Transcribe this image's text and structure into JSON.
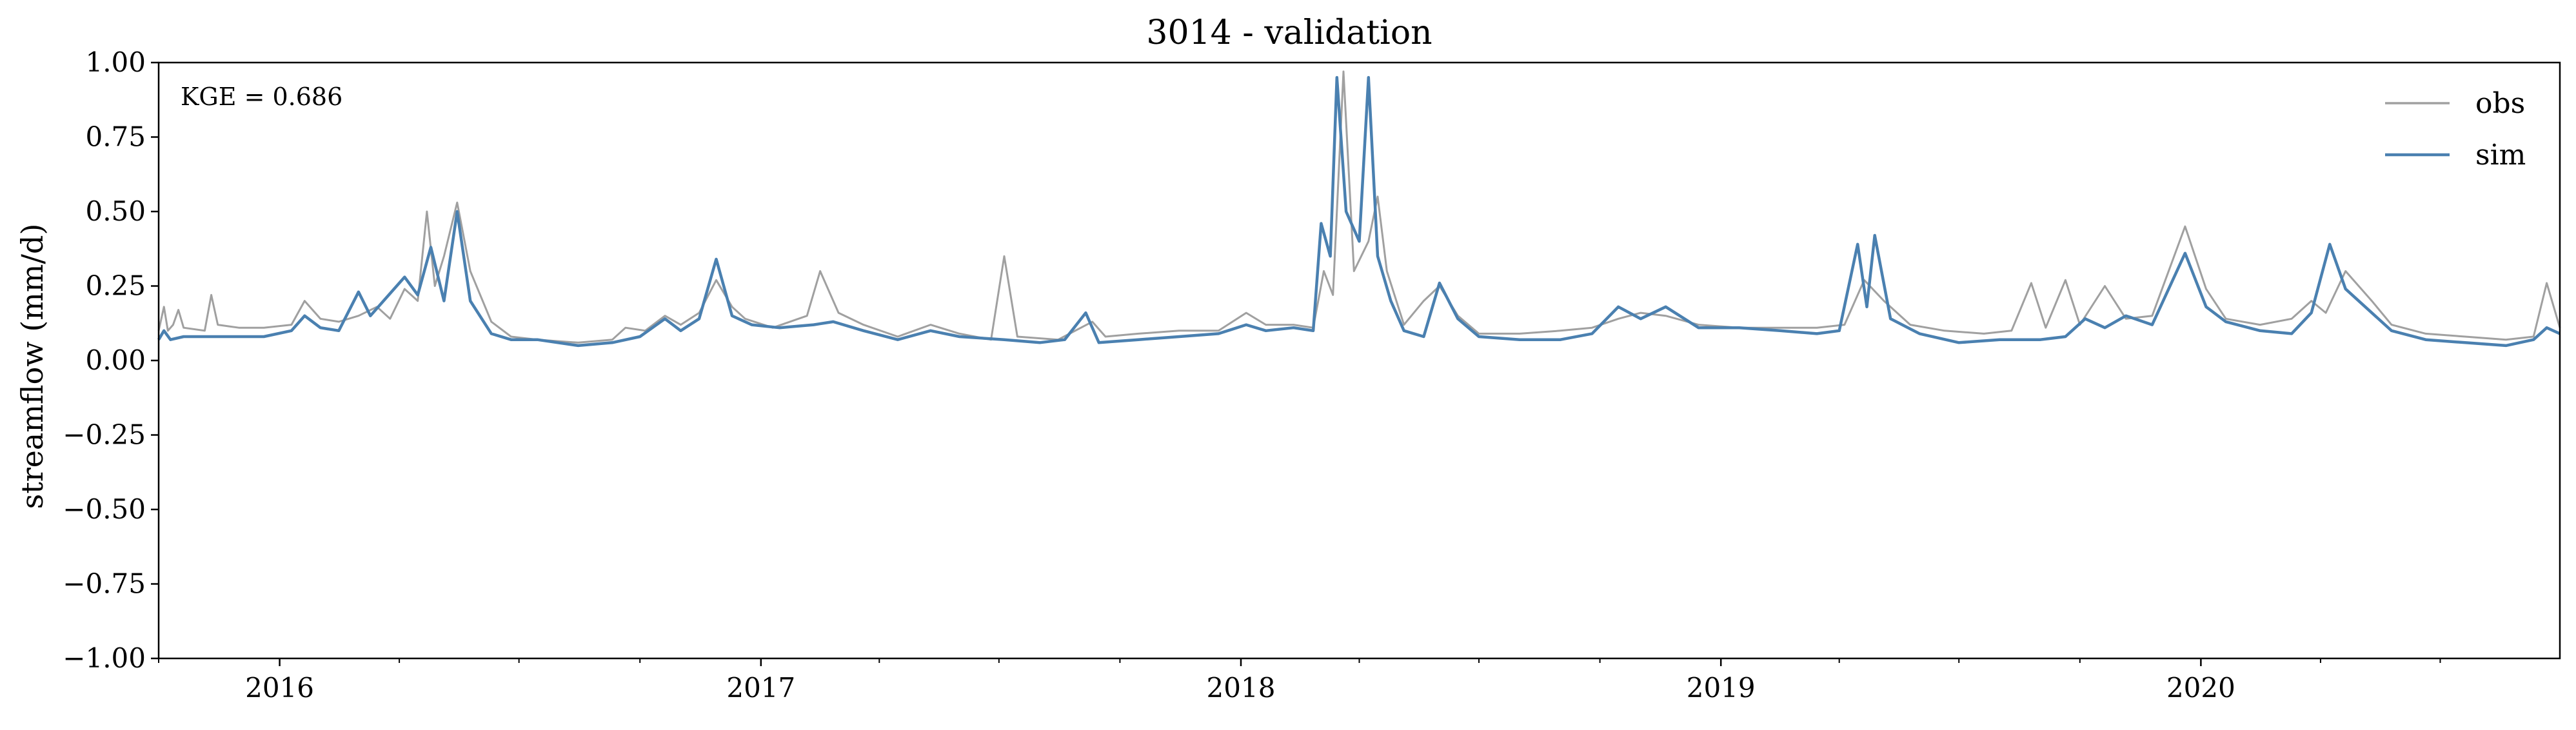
{
  "chart_data": {
    "type": "line",
    "title": "3014 - validation",
    "ylabel": "streamflow (mm/d)",
    "xlabel": "",
    "annotation": "KGE = 0.686",
    "ylim": [
      -1.0,
      1.0
    ],
    "xlim": [
      "2015-10-01",
      "2020-09-30"
    ],
    "x_tick_labels": [
      "2016",
      "2017",
      "2018",
      "2019",
      "2020"
    ],
    "y_tick_labels": [
      "1.00",
      "0.75",
      "0.50",
      "0.25",
      "0.00",
      "−0.25",
      "−0.50",
      "−0.75",
      "−1.00"
    ],
    "y_ticks": [
      1.0,
      0.75,
      0.5,
      0.25,
      0.0,
      -0.25,
      -0.5,
      -0.75,
      -1.0
    ],
    "legend": {
      "position": "top-right",
      "entries": [
        "obs",
        "sim"
      ]
    },
    "grid": false,
    "colors": {
      "obs": "#a0a0a0",
      "sim": "#4a80b0"
    },
    "series": [
      {
        "name": "obs",
        "points": [
          [
            "2015-10-01",
            0.1
          ],
          [
            "2015-10-05",
            0.18
          ],
          [
            "2015-10-08",
            0.1
          ],
          [
            "2015-10-12",
            0.12
          ],
          [
            "2015-10-16",
            0.17
          ],
          [
            "2015-10-20",
            0.11
          ],
          [
            "2015-11-05",
            0.1
          ],
          [
            "2015-11-10",
            0.22
          ],
          [
            "2015-11-15",
            0.12
          ],
          [
            "2015-12-01",
            0.11
          ],
          [
            "2015-12-20",
            0.11
          ],
          [
            "2016-01-10",
            0.12
          ],
          [
            "2016-01-20",
            0.2
          ],
          [
            "2016-02-01",
            0.14
          ],
          [
            "2016-02-15",
            0.13
          ],
          [
            "2016-03-01",
            0.15
          ],
          [
            "2016-03-15",
            0.18
          ],
          [
            "2016-03-25",
            0.14
          ],
          [
            "2016-04-05",
            0.24
          ],
          [
            "2016-04-15",
            0.2
          ],
          [
            "2016-04-22",
            0.5
          ],
          [
            "2016-04-28",
            0.25
          ],
          [
            "2016-05-05",
            0.35
          ],
          [
            "2016-05-15",
            0.53
          ],
          [
            "2016-05-25",
            0.3
          ],
          [
            "2016-06-10",
            0.13
          ],
          [
            "2016-06-25",
            0.08
          ],
          [
            "2016-07-15",
            0.07
          ],
          [
            "2016-08-15",
            0.06
          ],
          [
            "2016-09-10",
            0.07
          ],
          [
            "2016-09-20",
            0.11
          ],
          [
            "2016-10-05",
            0.1
          ],
          [
            "2016-10-20",
            0.15
          ],
          [
            "2016-11-01",
            0.12
          ],
          [
            "2016-11-15",
            0.16
          ],
          [
            "2016-11-28",
            0.27
          ],
          [
            "2016-12-10",
            0.18
          ],
          [
            "2016-12-20",
            0.14
          ],
          [
            "2017-01-10",
            0.11
          ],
          [
            "2017-02-05",
            0.15
          ],
          [
            "2017-02-15",
            0.3
          ],
          [
            "2017-03-01",
            0.16
          ],
          [
            "2017-03-20",
            0.12
          ],
          [
            "2017-04-15",
            0.08
          ],
          [
            "2017-05-10",
            0.12
          ],
          [
            "2017-06-01",
            0.09
          ],
          [
            "2017-06-25",
            0.07
          ],
          [
            "2017-07-05",
            0.35
          ],
          [
            "2017-07-15",
            0.08
          ],
          [
            "2017-08-15",
            0.07
          ],
          [
            "2017-09-10",
            0.13
          ],
          [
            "2017-09-20",
            0.08
          ],
          [
            "2017-10-15",
            0.09
          ],
          [
            "2017-11-15",
            0.1
          ],
          [
            "2017-12-15",
            0.1
          ],
          [
            "2018-01-05",
            0.16
          ],
          [
            "2018-01-20",
            0.12
          ],
          [
            "2018-02-10",
            0.12
          ],
          [
            "2018-02-25",
            0.11
          ],
          [
            "2018-03-05",
            0.3
          ],
          [
            "2018-03-12",
            0.22
          ],
          [
            "2018-03-20",
            0.97
          ],
          [
            "2018-03-28",
            0.3
          ],
          [
            "2018-04-08",
            0.4
          ],
          [
            "2018-04-15",
            0.55
          ],
          [
            "2018-04-22",
            0.3
          ],
          [
            "2018-05-05",
            0.12
          ],
          [
            "2018-05-20",
            0.2
          ],
          [
            "2018-06-01",
            0.25
          ],
          [
            "2018-06-15",
            0.15
          ],
          [
            "2018-07-01",
            0.09
          ],
          [
            "2018-08-01",
            0.09
          ],
          [
            "2018-09-01",
            0.1
          ],
          [
            "2018-09-25",
            0.11
          ],
          [
            "2018-10-15",
            0.14
          ],
          [
            "2018-11-01",
            0.16
          ],
          [
            "2018-11-20",
            0.15
          ],
          [
            "2018-12-15",
            0.12
          ],
          [
            "2019-01-15",
            0.11
          ],
          [
            "2019-02-15",
            0.11
          ],
          [
            "2019-03-15",
            0.11
          ],
          [
            "2019-04-05",
            0.12
          ],
          [
            "2019-04-20",
            0.27
          ],
          [
            "2019-05-05",
            0.2
          ],
          [
            "2019-05-25",
            0.12
          ],
          [
            "2019-06-20",
            0.1
          ],
          [
            "2019-07-20",
            0.09
          ],
          [
            "2019-08-10",
            0.1
          ],
          [
            "2019-08-25",
            0.26
          ],
          [
            "2019-09-05",
            0.11
          ],
          [
            "2019-09-20",
            0.27
          ],
          [
            "2019-10-01",
            0.12
          ],
          [
            "2019-10-20",
            0.25
          ],
          [
            "2019-11-05",
            0.14
          ],
          [
            "2019-11-25",
            0.15
          ],
          [
            "2019-12-20",
            0.45
          ],
          [
            "2020-01-05",
            0.24
          ],
          [
            "2020-01-20",
            0.14
          ],
          [
            "2020-02-15",
            0.12
          ],
          [
            "2020-03-10",
            0.14
          ],
          [
            "2020-03-25",
            0.2
          ],
          [
            "2020-04-05",
            0.16
          ],
          [
            "2020-04-20",
            0.3
          ],
          [
            "2020-05-10",
            0.2
          ],
          [
            "2020-05-25",
            0.12
          ],
          [
            "2020-06-20",
            0.09
          ],
          [
            "2020-07-20",
            0.08
          ],
          [
            "2020-08-20",
            0.07
          ],
          [
            "2020-09-10",
            0.08
          ],
          [
            "2020-09-20",
            0.26
          ],
          [
            "2020-09-30",
            0.11
          ]
        ]
      },
      {
        "name": "sim",
        "points": [
          [
            "2015-10-01",
            0.07
          ],
          [
            "2015-10-05",
            0.1
          ],
          [
            "2015-10-10",
            0.07
          ],
          [
            "2015-10-20",
            0.08
          ],
          [
            "2015-11-10",
            0.08
          ],
          [
            "2015-12-01",
            0.08
          ],
          [
            "2015-12-20",
            0.08
          ],
          [
            "2016-01-10",
            0.1
          ],
          [
            "2016-01-20",
            0.15
          ],
          [
            "2016-02-01",
            0.11
          ],
          [
            "2016-02-15",
            0.1
          ],
          [
            "2016-03-01",
            0.23
          ],
          [
            "2016-03-10",
            0.15
          ],
          [
            "2016-03-20",
            0.2
          ],
          [
            "2016-04-05",
            0.28
          ],
          [
            "2016-04-15",
            0.22
          ],
          [
            "2016-04-25",
            0.38
          ],
          [
            "2016-05-05",
            0.2
          ],
          [
            "2016-05-15",
            0.5
          ],
          [
            "2016-05-25",
            0.2
          ],
          [
            "2016-06-10",
            0.09
          ],
          [
            "2016-06-25",
            0.07
          ],
          [
            "2016-07-15",
            0.07
          ],
          [
            "2016-08-15",
            0.05
          ],
          [
            "2016-09-10",
            0.06
          ],
          [
            "2016-10-01",
            0.08
          ],
          [
            "2016-10-20",
            0.14
          ],
          [
            "2016-11-01",
            0.1
          ],
          [
            "2016-11-15",
            0.14
          ],
          [
            "2016-11-28",
            0.34
          ],
          [
            "2016-12-10",
            0.15
          ],
          [
            "2016-12-25",
            0.12
          ],
          [
            "2017-01-15",
            0.11
          ],
          [
            "2017-02-10",
            0.12
          ],
          [
            "2017-02-25",
            0.13
          ],
          [
            "2017-03-20",
            0.1
          ],
          [
            "2017-04-15",
            0.07
          ],
          [
            "2017-05-10",
            0.1
          ],
          [
            "2017-06-01",
            0.08
          ],
          [
            "2017-07-05",
            0.07
          ],
          [
            "2017-08-01",
            0.06
          ],
          [
            "2017-08-20",
            0.07
          ],
          [
            "2017-09-05",
            0.16
          ],
          [
            "2017-09-15",
            0.06
          ],
          [
            "2017-10-15",
            0.07
          ],
          [
            "2017-11-15",
            0.08
          ],
          [
            "2017-12-15",
            0.09
          ],
          [
            "2018-01-05",
            0.12
          ],
          [
            "2018-01-20",
            0.1
          ],
          [
            "2018-02-10",
            0.11
          ],
          [
            "2018-02-25",
            0.1
          ],
          [
            "2018-03-03",
            0.46
          ],
          [
            "2018-03-10",
            0.35
          ],
          [
            "2018-03-15",
            0.95
          ],
          [
            "2018-03-22",
            0.5
          ],
          [
            "2018-04-01",
            0.4
          ],
          [
            "2018-04-08",
            0.95
          ],
          [
            "2018-04-15",
            0.35
          ],
          [
            "2018-04-25",
            0.2
          ],
          [
            "2018-05-05",
            0.1
          ],
          [
            "2018-05-20",
            0.08
          ],
          [
            "2018-06-01",
            0.26
          ],
          [
            "2018-06-15",
            0.14
          ],
          [
            "2018-07-01",
            0.08
          ],
          [
            "2018-08-01",
            0.07
          ],
          [
            "2018-09-01",
            0.07
          ],
          [
            "2018-09-25",
            0.09
          ],
          [
            "2018-10-15",
            0.18
          ],
          [
            "2018-11-01",
            0.14
          ],
          [
            "2018-11-20",
            0.18
          ],
          [
            "2018-12-15",
            0.11
          ],
          [
            "2019-01-15",
            0.11
          ],
          [
            "2019-02-15",
            0.1
          ],
          [
            "2019-03-15",
            0.09
          ],
          [
            "2019-04-01",
            0.1
          ],
          [
            "2019-04-15",
            0.39
          ],
          [
            "2019-04-22",
            0.18
          ],
          [
            "2019-04-28",
            0.42
          ],
          [
            "2019-05-10",
            0.14
          ],
          [
            "2019-06-01",
            0.09
          ],
          [
            "2019-07-01",
            0.06
          ],
          [
            "2019-08-01",
            0.07
          ],
          [
            "2019-09-01",
            0.07
          ],
          [
            "2019-09-20",
            0.08
          ],
          [
            "2019-10-05",
            0.14
          ],
          [
            "2019-10-20",
            0.11
          ],
          [
            "2019-11-05",
            0.15
          ],
          [
            "2019-11-25",
            0.12
          ],
          [
            "2019-12-20",
            0.36
          ],
          [
            "2020-01-05",
            0.18
          ],
          [
            "2020-01-20",
            0.13
          ],
          [
            "2020-02-15",
            0.1
          ],
          [
            "2020-03-10",
            0.09
          ],
          [
            "2020-03-25",
            0.16
          ],
          [
            "2020-04-08",
            0.39
          ],
          [
            "2020-04-20",
            0.24
          ],
          [
            "2020-05-05",
            0.18
          ],
          [
            "2020-05-25",
            0.1
          ],
          [
            "2020-06-20",
            0.07
          ],
          [
            "2020-07-20",
            0.06
          ],
          [
            "2020-08-20",
            0.05
          ],
          [
            "2020-09-10",
            0.07
          ],
          [
            "2020-09-20",
            0.11
          ],
          [
            "2020-09-30",
            0.09
          ]
        ]
      }
    ]
  }
}
